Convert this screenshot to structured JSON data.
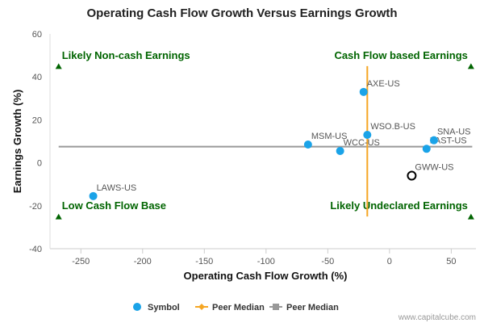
{
  "chart_data": {
    "type": "scatter",
    "title": "Operating Cash Flow Growth Versus Earnings Growth",
    "xlabel": "Operating Cash Flow Growth (%)",
    "ylabel": "Earnings Growth (%)",
    "xlim": [
      -275,
      70
    ],
    "ylim": [
      -40,
      60
    ],
    "x_ticks": [
      -250,
      -200,
      -150,
      -100,
      -50,
      0,
      50
    ],
    "y_ticks": [
      -40,
      -20,
      0,
      20,
      40,
      60
    ],
    "grid": false,
    "legend_position": "bottom",
    "colors": {
      "symbol": "#1aa3e8",
      "peer_median_vertical": "#f5a623",
      "peer_median_horizontal": "#999999",
      "quadrant_text": "#006400",
      "highlight_edge": "#000000"
    },
    "points": [
      {
        "label": "LAWS-US",
        "x": -240,
        "y": -15.5
      },
      {
        "label": "MSM-US",
        "x": -66,
        "y": 8.5
      },
      {
        "label": "WCC-US",
        "x": -40,
        "y": 5.5
      },
      {
        "label": "AXE-US",
        "x": -21,
        "y": 33
      },
      {
        "label": "WSO.B-US",
        "x": -18,
        "y": 13
      },
      {
        "label": "FAST-US",
        "x": 30,
        "y": 6.5
      },
      {
        "label": "SNA-US",
        "x": 36,
        "y": 10.5
      }
    ],
    "highlight_point": {
      "label": "GWW-US",
      "x": 18,
      "y": -6
    },
    "peer_median_x": -18,
    "peer_median_y": 7.5,
    "peer_median_x_range": [
      -25,
      45
    ],
    "peer_median_y_range": [
      -268,
      67
    ],
    "quadrants": [
      {
        "text": "Likely Non-cash Earnings",
        "x": -268,
        "y": 45,
        "side": "left"
      },
      {
        "text": "Cash Flow based Earnings",
        "x": 66,
        "y": 45,
        "side": "right"
      },
      {
        "text": "Low Cash Flow Base",
        "x": -268,
        "y": -25,
        "side": "left"
      },
      {
        "text": "Likely Undeclared Earnings",
        "x": 66,
        "y": -25,
        "side": "right"
      }
    ],
    "legend": [
      {
        "text": "Symbol",
        "kind": "dot"
      },
      {
        "text": "Peer Median",
        "kind": "orange-line"
      },
      {
        "text": "Peer Median",
        "kind": "gray-line"
      }
    ]
  },
  "credit": "www.capitalcube.com"
}
